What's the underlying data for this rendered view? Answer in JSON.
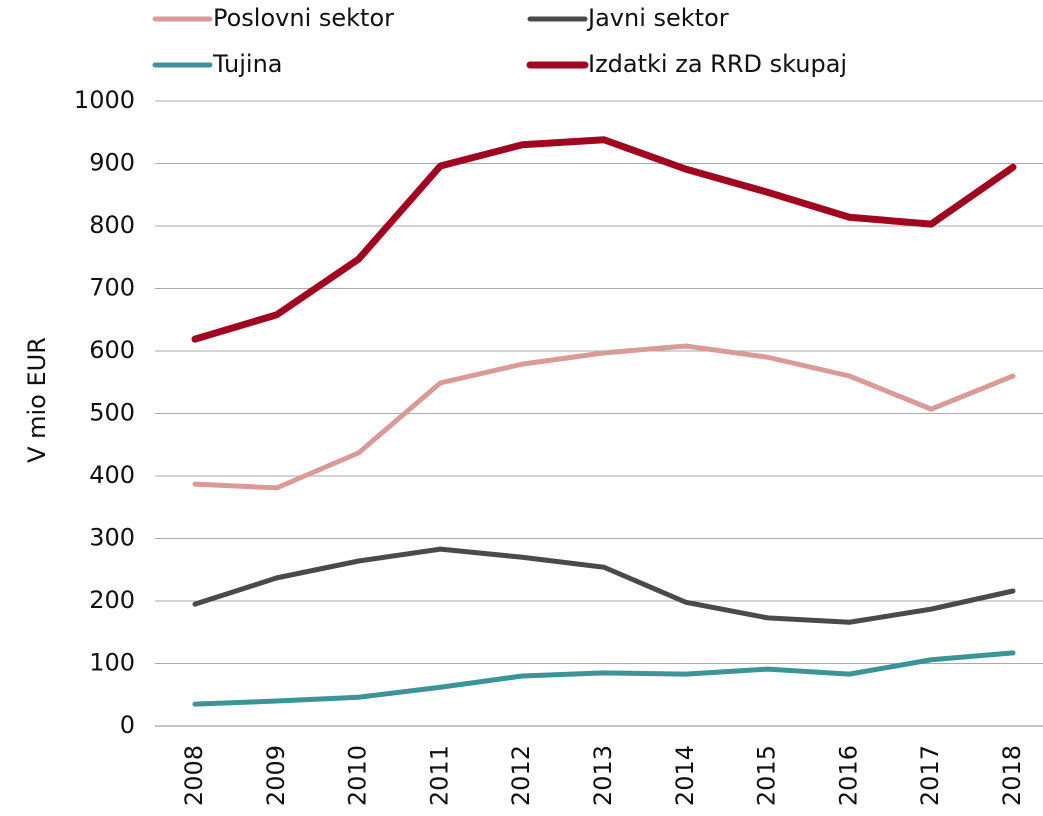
{
  "chart_data": {
    "type": "line",
    "y_label": "V mio EUR",
    "categories": [
      "2008",
      "2009",
      "2010",
      "2011",
      "2012",
      "2013",
      "2014",
      "2015",
      "2016",
      "2017",
      "2018"
    ],
    "series": [
      {
        "name": "Poslovni sektor",
        "color": "#d99a98",
        "values": [
          387,
          381,
          437,
          549,
          579,
          597,
          608,
          590,
          560,
          507,
          560
        ]
      },
      {
        "name": "Javni sektor",
        "color": "#4a4a4a",
        "values": [
          195,
          237,
          264,
          283,
          270,
          254,
          198,
          173,
          166,
          187,
          216
        ]
      },
      {
        "name": "Tujina",
        "color": "#3a9498",
        "values": [
          35,
          40,
          46,
          62,
          80,
          85,
          83,
          91,
          83,
          106,
          117
        ]
      },
      {
        "name": "Izdatki za RRD skupaj",
        "color": "#a0061f",
        "values": [
          619,
          658,
          747,
          896,
          930,
          938,
          891,
          854,
          814,
          803,
          894
        ]
      }
    ],
    "ylim": [
      0,
      1000
    ],
    "yticks": [
      0,
      100,
      200,
      300,
      400,
      500,
      600,
      700,
      800,
      900,
      1000
    ],
    "grid": true
  }
}
